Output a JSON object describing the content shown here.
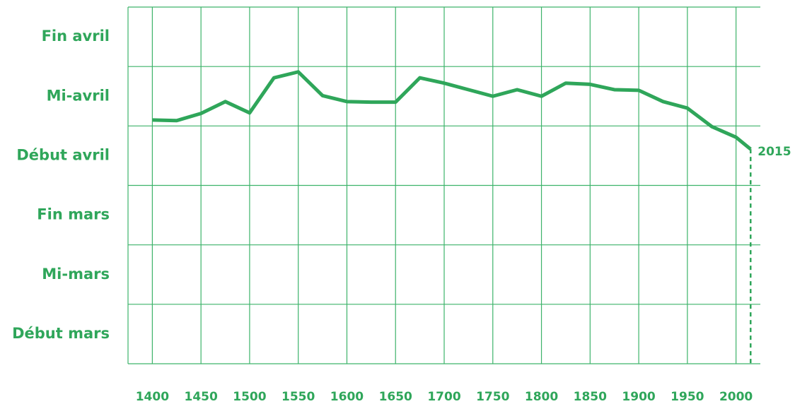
{
  "chart_data": {
    "type": "line",
    "x": [
      1400,
      1425,
      1450,
      1475,
      1500,
      1525,
      1550,
      1575,
      1600,
      1625,
      1650,
      1675,
      1700,
      1725,
      1750,
      1775,
      1800,
      1825,
      1850,
      1875,
      1900,
      1925,
      1950,
      1975,
      2000,
      2015
    ],
    "series": [
      {
        "color": "#2fa65a",
        "values": [
          4.1,
          4.09,
          4.21,
          4.41,
          4.22,
          4.81,
          4.91,
          4.51,
          4.41,
          4.4,
          4.4,
          4.81,
          4.72,
          4.61,
          4.5,
          4.61,
          4.5,
          4.72,
          4.7,
          4.61,
          4.6,
          4.41,
          4.3,
          3.99,
          3.81,
          3.61
        ]
      }
    ],
    "xlim": [
      1375,
      2025
    ],
    "xticks": [
      1400,
      1450,
      1500,
      1550,
      1600,
      1650,
      1700,
      1750,
      1800,
      1850,
      1900,
      1950,
      2000
    ],
    "ylim": [
      0,
      6
    ],
    "yticks": [
      {
        "value": 0.5,
        "label": "Début mars"
      },
      {
        "value": 1.5,
        "label": "Mi-mars"
      },
      {
        "value": 2.5,
        "label": "Fin mars"
      },
      {
        "value": 3.5,
        "label": "Début avril"
      },
      {
        "value": 4.5,
        "label": "Mi-avril"
      },
      {
        "value": 5.5,
        "label": "Fin avril"
      }
    ],
    "ygrid": [
      0,
      1,
      2,
      3,
      4,
      5,
      6
    ],
    "grid": true,
    "grid_color": "#3db36a",
    "annotation": "2015"
  }
}
